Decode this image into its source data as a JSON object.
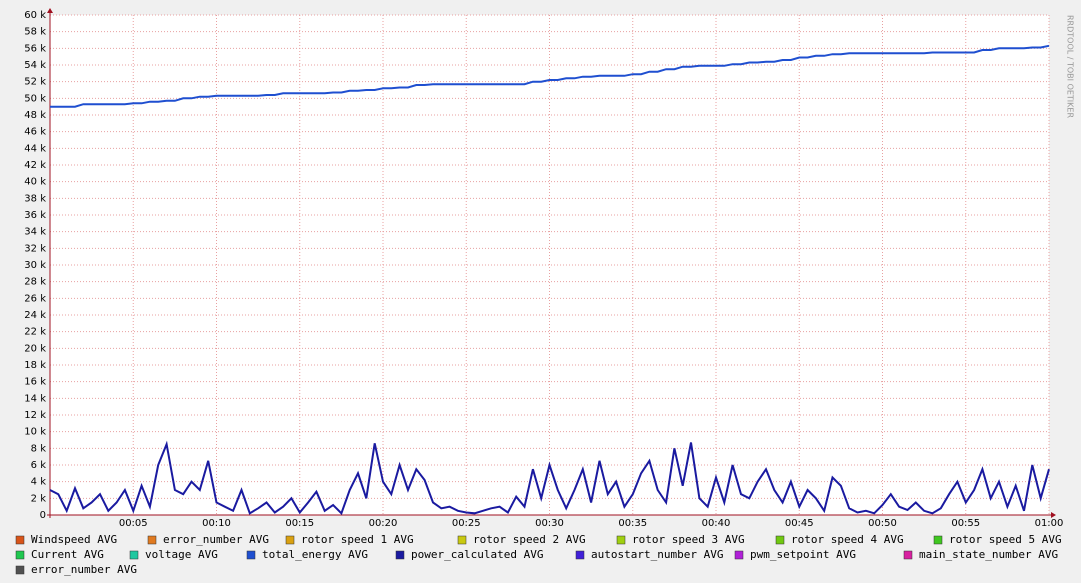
{
  "chart_data": {
    "type": "line",
    "watermark": "RRDTOOL / TOBI OETIKER",
    "x": [
      0,
      0.5,
      1,
      1.5,
      2,
      2.5,
      3,
      3.5,
      4,
      4.5,
      5,
      5.5,
      6,
      6.5,
      7,
      7.5,
      8,
      8.5,
      9,
      9.5,
      10,
      10.5,
      11,
      11.5,
      12,
      12.5,
      13,
      13.5,
      14,
      14.5,
      15,
      15.5,
      16,
      16.5,
      17,
      17.5,
      18,
      18.5,
      19,
      19.5,
      20,
      20.5,
      21,
      21.5,
      22,
      22.5,
      23,
      23.5,
      24,
      24.5,
      25,
      25.5,
      26,
      26.5,
      27,
      27.5,
      28,
      28.5,
      29,
      29.5,
      30,
      30.5,
      31,
      31.5,
      32,
      32.5,
      33,
      33.5,
      34,
      34.5,
      35,
      35.5,
      36,
      36.5,
      37,
      37.5,
      38,
      38.5,
      39,
      39.5,
      40,
      40.5,
      41,
      41.5,
      42,
      42.5,
      43,
      43.5,
      44,
      44.5,
      45,
      45.5,
      46,
      46.5,
      47,
      47.5,
      48,
      48.5,
      49,
      49.5,
      50,
      50.5,
      51,
      51.5,
      52,
      52.5,
      53,
      53.5,
      54,
      54.5,
      55,
      55.5,
      56,
      56.5,
      57,
      57.5,
      58,
      58.5,
      59,
      59.5,
      60
    ],
    "xlim": [
      0,
      60
    ],
    "xticks": [
      {
        "value": 5,
        "label": "00:05"
      },
      {
        "value": 10,
        "label": "00:10"
      },
      {
        "value": 15,
        "label": "00:15"
      },
      {
        "value": 20,
        "label": "00:20"
      },
      {
        "value": 25,
        "label": "00:25"
      },
      {
        "value": 30,
        "label": "00:30"
      },
      {
        "value": 35,
        "label": "00:35"
      },
      {
        "value": 40,
        "label": "00:40"
      },
      {
        "value": 45,
        "label": "00:45"
      },
      {
        "value": 50,
        "label": "00:50"
      },
      {
        "value": 55,
        "label": "00:55"
      },
      {
        "value": 60,
        "label": "01:00"
      }
    ],
    "ylim": [
      0,
      60000
    ],
    "yticks": [
      0,
      {
        "value": 2000,
        "label": "2 k"
      },
      {
        "value": 4000,
        "label": "4 k"
      },
      {
        "value": 6000,
        "label": "6 k"
      },
      {
        "value": 8000,
        "label": "8 k"
      },
      {
        "value": 10000,
        "label": "10 k"
      },
      {
        "value": 12000,
        "label": "12 k"
      },
      {
        "value": 14000,
        "label": "14 k"
      },
      {
        "value": 16000,
        "label": "16 k"
      },
      {
        "value": 18000,
        "label": "18 k"
      },
      {
        "value": 20000,
        "label": "20 k"
      },
      {
        "value": 22000,
        "label": "22 k"
      },
      {
        "value": 24000,
        "label": "24 k"
      },
      {
        "value": 26000,
        "label": "26 k"
      },
      {
        "value": 28000,
        "label": "28 k"
      },
      {
        "value": 30000,
        "label": "30 k"
      },
      {
        "value": 32000,
        "label": "32 k"
      },
      {
        "value": 34000,
        "label": "34 k"
      },
      {
        "value": 36000,
        "label": "36 k"
      },
      {
        "value": 38000,
        "label": "38 k"
      },
      {
        "value": 40000,
        "label": "40 k"
      },
      {
        "value": 42000,
        "label": "42 k"
      },
      {
        "value": 44000,
        "label": "44 k"
      },
      {
        "value": 46000,
        "label": "46 k"
      },
      {
        "value": 48000,
        "label": "48 k"
      },
      {
        "value": 50000,
        "label": "50 k"
      },
      {
        "value": 52000,
        "label": "52 k"
      },
      {
        "value": 54000,
        "label": "54 k"
      },
      {
        "value": 56000,
        "label": "56 k"
      },
      {
        "value": 58000,
        "label": "58 k"
      },
      {
        "value": 60000,
        "label": "60 k"
      }
    ],
    "grid": true,
    "series": [
      {
        "name": "Windspeed AVG",
        "color": "#d8541a"
      },
      {
        "name": "error_number AVG",
        "color": "#e07a20"
      },
      {
        "name": "rotor speed 1 AVG",
        "color": "#d9a010"
      },
      {
        "name": "rotor speed 2 AVG",
        "color": "#c9c910"
      },
      {
        "name": "rotor speed 3 AVG",
        "color": "#a0d010"
      },
      {
        "name": "rotor speed 4 AVG",
        "color": "#70c810"
      },
      {
        "name": "rotor speed 5 AVG",
        "color": "#40c820"
      },
      {
        "name": "Current AVG",
        "color": "#20c850"
      },
      {
        "name": "voltage AVG",
        "color": "#20c8a0"
      },
      {
        "name": "total_energy AVG",
        "color": "#1f4fd0",
        "values": [
          49000,
          49000,
          49000,
          49000,
          49300,
          49300,
          49300,
          49300,
          49300,
          49300,
          49400,
          49400,
          49600,
          49600,
          49700,
          49700,
          50000,
          50000,
          50200,
          50200,
          50300,
          50300,
          50300,
          50300,
          50300,
          50300,
          50400,
          50400,
          50600,
          50600,
          50600,
          50600,
          50600,
          50600,
          50700,
          50700,
          50900,
          50900,
          51000,
          51000,
          51200,
          51200,
          51300,
          51300,
          51600,
          51600,
          51700,
          51700,
          51700,
          51700,
          51700,
          51700,
          51700,
          51700,
          51700,
          51700,
          51700,
          51700,
          52000,
          52000,
          52200,
          52200,
          52400,
          52400,
          52600,
          52600,
          52700,
          52700,
          52700,
          52700,
          52900,
          52900,
          53200,
          53200,
          53500,
          53500,
          53800,
          53800,
          53900,
          53900,
          53900,
          53900,
          54100,
          54100,
          54300,
          54300,
          54400,
          54400,
          54600,
          54600,
          54900,
          54900,
          55100,
          55100,
          55300,
          55300,
          55400,
          55400,
          55400,
          55400,
          55400,
          55400,
          55400,
          55400,
          55400,
          55400,
          55500,
          55500,
          55500,
          55500,
          55500,
          55500,
          55800,
          55800,
          56000,
          56000,
          56000,
          56000,
          56100,
          56100,
          56300
        ]
      },
      {
        "name": "power_calculated AVG",
        "color": "#1a1aa0",
        "values": [
          3000,
          2500,
          500,
          3200,
          800,
          1500,
          2500,
          500,
          1500,
          3000,
          500,
          3500,
          1000,
          6000,
          8500,
          3000,
          2500,
          4000,
          3000,
          6500,
          1500,
          1000,
          500,
          3000,
          200,
          800,
          1500,
          300,
          1000,
          2000,
          300,
          1500,
          2800,
          500,
          1200,
          200,
          3000,
          5000,
          2000,
          8600,
          4000,
          2500,
          6000,
          3000,
          5500,
          4200,
          1500,
          800,
          1000,
          500,
          300,
          200,
          500,
          800,
          1000,
          300,
          2200,
          1000,
          5500,
          2000,
          6000,
          3000,
          800,
          3000,
          5500,
          1500,
          6500,
          2500,
          4000,
          1000,
          2500,
          5000,
          6500,
          3000,
          1500,
          8000,
          3500,
          8700,
          2000,
          1000,
          4500,
          1500,
          6000,
          2500,
          2000,
          4000,
          5500,
          3000,
          1500,
          4000,
          1000,
          3000,
          2000,
          500,
          4500,
          3500,
          800,
          300,
          500,
          200,
          1200,
          2500,
          1000,
          600,
          1500,
          500,
          200,
          800,
          2500,
          4000,
          1500,
          3000,
          5500,
          2000,
          4000,
          1000,
          3500,
          500,
          6000,
          2000,
          5500
        ]
      },
      {
        "name": "autostart_number AVG",
        "color": "#4020d8"
      },
      {
        "name": "pwm_setpoint AVG",
        "color": "#b020d8"
      },
      {
        "name": "main_state_number AVG",
        "color": "#d820a0"
      },
      {
        "name": "error_number AVG",
        "color": "#505050"
      }
    ]
  }
}
